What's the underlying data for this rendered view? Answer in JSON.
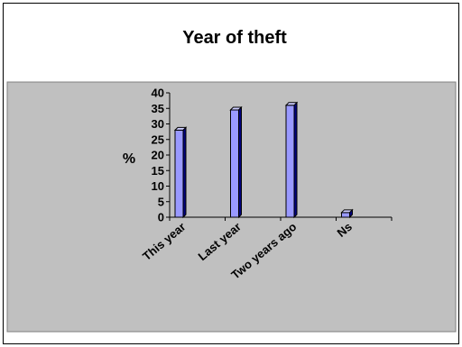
{
  "chart_data": {
    "type": "bar",
    "title": "Year of theft",
    "xlabel": "",
    "ylabel": "%",
    "categories": [
      "This year",
      "Last year",
      "Two years ago",
      "Ns"
    ],
    "values": [
      28,
      34.5,
      36,
      1.5
    ],
    "ylim": [
      0,
      40
    ],
    "yticks": [
      0,
      5,
      10,
      15,
      20,
      25,
      30,
      35,
      40
    ],
    "grid": false,
    "legend": "none",
    "colors": {
      "plot_area": "#c0c0c0",
      "bar_fill": "#9999ff",
      "bar_top": "#ccccff",
      "bar_side": "#000080",
      "axis": "#000000",
      "frame": "#000000",
      "background": "#ffffff"
    }
  }
}
